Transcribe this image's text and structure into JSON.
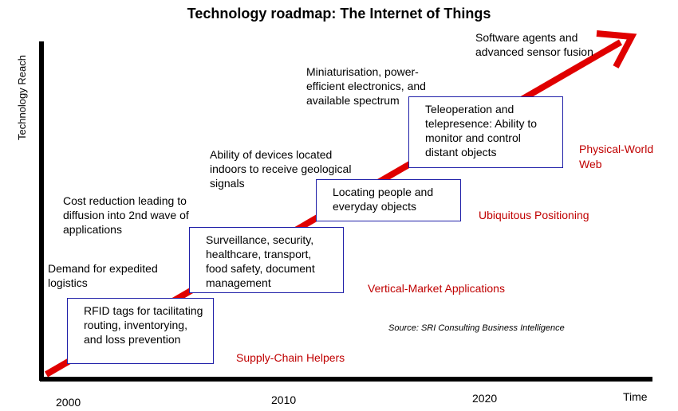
{
  "title": "Technology roadmap: The Internet of Things",
  "axes": {
    "y_label": "Technology Reach",
    "x_label": "Time"
  },
  "ticks": [
    "2000",
    "2010",
    "2020"
  ],
  "enablers": [
    "Demand for expedited logistics",
    "Cost reduction leading to diffusion into 2nd wave of applications",
    "Ability of devices located indoors to receive geological signals",
    "Miniaturisation, power-efficient electronics, and available spectrum",
    "Software agents and advanced sensor fusion"
  ],
  "applications": [
    "RFID tags for tacilitating routing, inventorying, and loss prevention",
    "Surveillance, security, healthcare, transport, food safety, document management",
    "Locating people and everyday objects",
    "Teleoperation and telepresence: Ability to monitor and control distant objects"
  ],
  "phases": [
    "Supply-Chain Helpers",
    "Vertical-Market Applications",
    "Ubiquitous Positioning",
    "Physical-World Web"
  ],
  "source": "Source: SRI Consulting Business Intelligence",
  "colors": {
    "arrow": "#e00000",
    "phase_text": "#c00000",
    "box_border": "#1f1fa8",
    "axis": "#000000"
  }
}
